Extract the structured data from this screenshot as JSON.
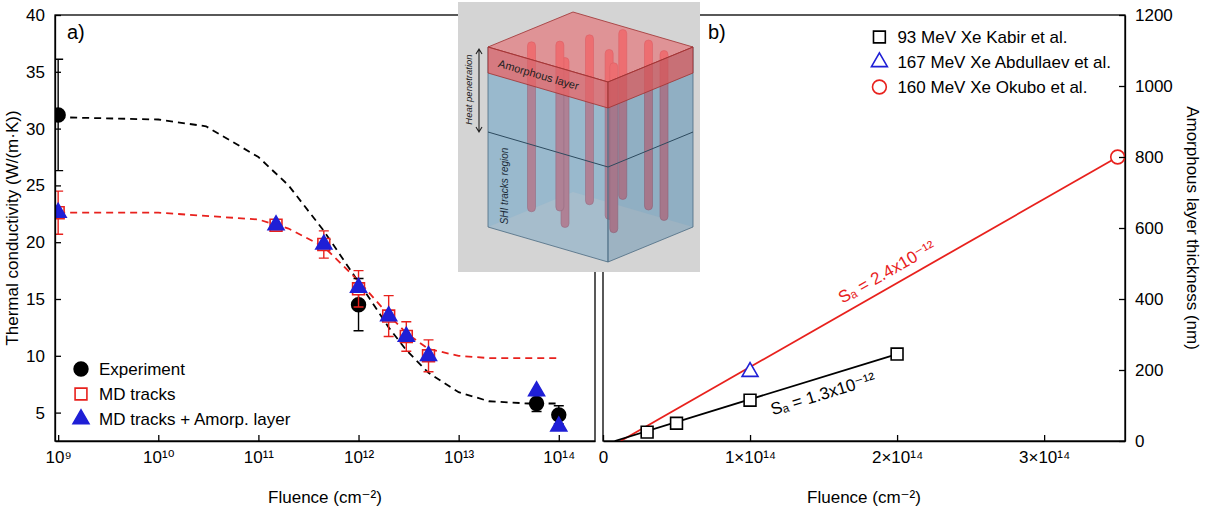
{
  "chart_data": [
    {
      "type": "scatter",
      "panel_label": "a)",
      "x_label": "Fluence (cm⁻²)",
      "y_label": "Thermal conductivity (W/(m·K))",
      "log": "x",
      "xlim": [
        930000000.0,
        230000000000000.0
      ],
      "xticks": [
        {
          "value": 1000000000.0,
          "label": "10⁹"
        },
        {
          "value": 10000000000.0,
          "label": "10¹⁰"
        },
        {
          "value": 100000000000.0,
          "label": "10¹¹"
        },
        {
          "value": 1000000000000.0,
          "label": "10¹²"
        },
        {
          "value": 10000000000000.0,
          "label": "10¹³"
        },
        {
          "value": 100000000000000.0,
          "label": "10¹⁴"
        }
      ],
      "ylim": [
        2.5,
        40
      ],
      "yticks": [
        5,
        10,
        15,
        20,
        25,
        30,
        35,
        40
      ],
      "legend": "lower left",
      "series": [
        {
          "type": "line",
          "line_style": "dashed",
          "color": "#000000",
          "x": [
            1000000000.0,
            10000000000.0,
            30000000000.0,
            100000000000.0,
            200000000000.0,
            450000000000.0,
            1000000000000.0,
            2000000000000.0,
            3000000000000.0,
            5000000000000.0,
            10000000000000.0,
            20000000000000.0,
            50000000000000.0,
            100000000000000.0
          ],
          "values": [
            31.0,
            30.8,
            30.2,
            27.5,
            25.0,
            21.0,
            16.5,
            12.5,
            10.5,
            8.5,
            6.8,
            6.0,
            5.8,
            5.8
          ]
        },
        {
          "type": "line",
          "line_style": "dashed",
          "color": "#e8211d",
          "x": [
            1000000000.0,
            10000000000.0,
            100000000000.0,
            200000000000.0,
            450000000000.0,
            1000000000000.0,
            2000000000000.0,
            3000000000000.0,
            5000000000000.0,
            10000000000000.0,
            20000000000000.0,
            100000000000000.0
          ],
          "values": [
            22.6,
            22.6,
            22.0,
            21.2,
            19.6,
            16.6,
            13.6,
            12.0,
            10.6,
            10.0,
            9.8,
            9.8
          ]
        },
        {
          "name": "Experiment",
          "type": "scatter",
          "marker": "circle",
          "color": "#000000",
          "x": [
            1000000000.0,
            1000000000000.0,
            60000000000000.0,
            100000000000000.0
          ],
          "values": [
            31.2,
            14.5,
            5.8,
            4.8
          ],
          "errors": [
            4.9,
            2.3,
            0.7,
            0.8
          ]
        },
        {
          "name": "MD tracks",
          "type": "scatter",
          "marker": "square-open",
          "color": "#e8211d",
          "x": [
            1000000000.0,
            150000000000.0,
            450000000000.0,
            1000000000000.0,
            2000000000000.0,
            3000000000000.0,
            5000000000000.0
          ],
          "values": [
            22.6,
            21.5,
            19.8,
            15.9,
            13.5,
            11.7,
            10.0
          ],
          "errors": [
            1.9,
            0.3,
            1.2,
            1.6,
            1.8,
            1.3,
            1.4
          ]
        },
        {
          "name": "MD tracks + Amorp. layer",
          "type": "scatter",
          "marker": "triangle",
          "color": "#1f1fd6",
          "x": [
            1000000000.0,
            150000000000.0,
            450000000000.0,
            1000000000000.0,
            2000000000000.0,
            3000000000000.0,
            5000000000000.0,
            60000000000000.0,
            100000000000000.0
          ],
          "values": [
            22.6,
            21.5,
            19.8,
            16.0,
            13.5,
            11.7,
            10.0,
            6.9,
            3.8
          ]
        }
      ]
    },
    {
      "type": "scatter",
      "panel_label": "b)",
      "x_label": "Fluence (cm⁻²)",
      "y2_label": "Amorphous layer thickness (nm)",
      "xlim": [
        0,
        355000000000000.0
      ],
      "xticks": [
        0,
        {
          "value": 100000000000000.0,
          "label": "1×10¹⁴"
        },
        {
          "value": 200000000000000.0,
          "label": "2×10¹⁴"
        },
        {
          "value": 300000000000000.0,
          "label": "3×10¹⁴"
        }
      ],
      "y2lim": [
        0,
        1200
      ],
      "y2ticks": [
        0,
        200,
        400,
        600,
        800,
        1000,
        1200
      ],
      "legend": "upper right",
      "annotations": [
        {
          "text": "Sₐ = 2.4x10⁻¹²",
          "color": "#e8211d"
        },
        {
          "text": "Sₐ = 1.3x10⁻¹²",
          "color": "#000000"
        }
      ],
      "series": [
        {
          "type": "line",
          "line_style": "solid",
          "color": "#e8211d",
          "axis": "y2",
          "x": [
            12000000000000.0,
            350000000000000.0
          ],
          "values": [
            0,
            800
          ]
        },
        {
          "type": "line",
          "line_style": "solid",
          "color": "#000000",
          "axis": "y2",
          "x": [
            8000000000000.0,
            200000000000000.0
          ],
          "values": [
            0,
            245
          ]
        },
        {
          "name": "93 MeV Xe Kabir et al.",
          "type": "scatter",
          "marker": "square-open",
          "color": "#000000",
          "axis": "y2",
          "x": [
            30000000000000.0,
            50000000000000.0,
            100000000000000.0,
            200000000000000.0
          ],
          "values": [
            25,
            50,
            115,
            245
          ],
          "errors": [
            3,
            4,
            8,
            15
          ]
        },
        {
          "name": "167 MeV Xe Abdullaev et al.",
          "type": "scatter",
          "marker": "triangle-open",
          "color": "#1f1fd6",
          "axis": "y2",
          "x": [
            100000000000000.0
          ],
          "values": [
            195
          ]
        },
        {
          "name": "160 MeV Xe Okubo et al.",
          "type": "scatter",
          "marker": "circle-open",
          "color": "#e8211d",
          "axis": "y2",
          "x": [
            350000000000000.0
          ],
          "values": [
            800
          ]
        }
      ]
    }
  ],
  "inset": {
    "layers": [
      "Amorphous layer",
      "SHI tracks region"
    ],
    "arrow_label": "Heat penetration"
  }
}
